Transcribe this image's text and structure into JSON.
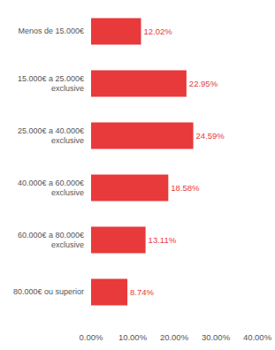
{
  "chart_data": {
    "type": "bar",
    "orientation": "horizontal",
    "categories": [
      "Menos de 15.000€",
      "15.000€ a 25.000€ exclusive",
      "25.000€ a 40.000€ exclusive",
      "40.000€ a 60.000€ exclusive",
      "60.000€ a 80.000€ exclusive",
      "80.000€ ou superior"
    ],
    "values": [
      12.02,
      22.95,
      24.59,
      18.58,
      13.11,
      8.74
    ],
    "value_labels": [
      "12.02%",
      "22.95%",
      "24.59%",
      "18.58%",
      "13.11%",
      "8.74%"
    ],
    "color": "#e8393b",
    "xlim": [
      0,
      40
    ],
    "xticks": [
      {
        "value": 0,
        "label": "0.00%"
      },
      {
        "value": 10,
        "label": "10.00%"
      },
      {
        "value": 20,
        "label": "20.00%"
      },
      {
        "value": 30,
        "label": "30.00%"
      },
      {
        "value": 40,
        "label": "40.00%"
      }
    ],
    "data_labels": true,
    "grid": false
  }
}
